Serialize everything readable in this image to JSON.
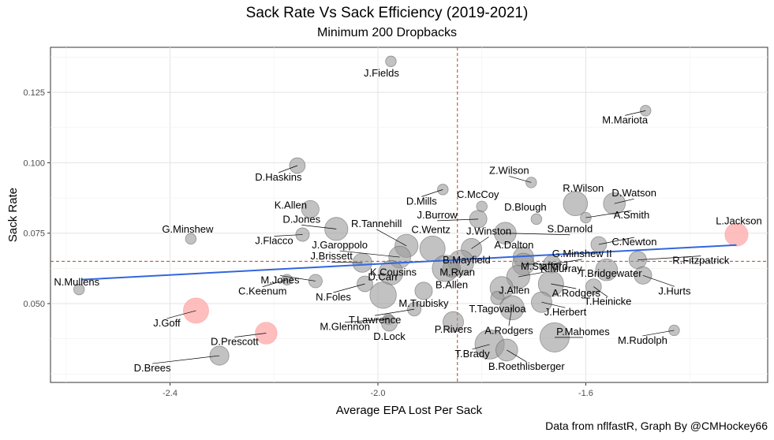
{
  "title": "Sack Rate Vs Sack Efficiency (2019-2021)",
  "subtitle": "Minimum 200 Dropbacks",
  "caption": "Data from nflfastR, Graph By @CMHockey66",
  "chart_data": {
    "type": "scatter",
    "xlabel": "Average EPA Lost Per Sack",
    "ylabel": "Sack Rate",
    "xlim": [
      -2.63,
      -1.25
    ],
    "ylim": [
      0.022,
      0.141
    ],
    "xticks": [
      -2.4,
      -2.0,
      -1.6
    ],
    "xtick_labels": [
      "-2.4",
      "-2.0",
      "-1.6"
    ],
    "yticks": [
      0.05,
      0.075,
      0.1,
      0.125
    ],
    "ytick_labels": [
      "0.050",
      "0.075",
      "0.100",
      "0.125"
    ],
    "grid": true,
    "legend": "none",
    "mean_x": -1.847,
    "mean_y": 0.065,
    "trend_line": {
      "x": [
        -2.57,
        -1.31
      ],
      "y": [
        0.0585,
        0.0708
      ],
      "color": "#3366dd"
    },
    "colors": {
      "point": "#999999",
      "highlight": "#ffb3b3",
      "trend": "#3366dd",
      "ref": "#b2442c"
    },
    "points": [
      {
        "name": "J.Fields",
        "x": -1.975,
        "y": 0.136,
        "size": 1,
        "hl": false
      },
      {
        "name": "M.Mariota",
        "x": -1.485,
        "y": 0.1185,
        "size": 1,
        "hl": false
      },
      {
        "name": "D.Haskins",
        "x": -2.155,
        "y": 0.099,
        "size": 3,
        "hl": false
      },
      {
        "name": "D.Mills",
        "x": -1.875,
        "y": 0.0905,
        "size": 1,
        "hl": false
      },
      {
        "name": "Z.Wilson",
        "x": -1.705,
        "y": 0.093,
        "size": 1,
        "hl": false
      },
      {
        "name": "C.McCoy",
        "x": -1.8,
        "y": 0.0845,
        "size": 1,
        "hl": false
      },
      {
        "name": "R.Wilson",
        "x": -1.62,
        "y": 0.0855,
        "size": 9,
        "hl": false
      },
      {
        "name": "D.Watson",
        "x": -1.545,
        "y": 0.0855,
        "size": 7,
        "hl": false
      },
      {
        "name": "K.Allen",
        "x": -2.13,
        "y": 0.0835,
        "size": 4,
        "hl": false
      },
      {
        "name": "D.Blough",
        "x": -1.695,
        "y": 0.08,
        "size": 1,
        "hl": false
      },
      {
        "name": "A.Smith",
        "x": -1.6,
        "y": 0.0805,
        "size": 1,
        "hl": false
      },
      {
        "name": "J.Burrow",
        "x": -1.807,
        "y": 0.08,
        "size": 4,
        "hl": false
      },
      {
        "name": "D.Jones",
        "x": -2.08,
        "y": 0.0765,
        "size": 8,
        "hl": false
      },
      {
        "name": "G.Minshew",
        "x": -2.36,
        "y": 0.073,
        "size": 1,
        "hl": false
      },
      {
        "name": "J.Winston",
        "x": -1.82,
        "y": 0.0695,
        "size": 6,
        "hl": false
      },
      {
        "name": "S.Darnold",
        "x": -1.755,
        "y": 0.075,
        "size": 7,
        "hl": false
      },
      {
        "name": "R.Tannehill",
        "x": -1.945,
        "y": 0.0705,
        "size": 8,
        "hl": false
      },
      {
        "name": "J.Flacco",
        "x": -2.145,
        "y": 0.0745,
        "size": 2,
        "hl": false
      },
      {
        "name": "L.Jackson",
        "x": -1.31,
        "y": 0.0745,
        "size": 8,
        "hl": true
      },
      {
        "name": "C.Wentz",
        "x": -1.895,
        "y": 0.0695,
        "size": 10,
        "hl": false
      },
      {
        "name": "J.Garoppolo",
        "x": -1.958,
        "y": 0.0665,
        "size": 7,
        "hl": false
      },
      {
        "name": "A.Dalton",
        "x": -1.72,
        "y": 0.0665,
        "size": 6,
        "hl": false
      },
      {
        "name": "C.Newton",
        "x": -1.575,
        "y": 0.071,
        "size": 3,
        "hl": false
      },
      {
        "name": "G.Minshew II",
        "x": -1.665,
        "y": 0.064,
        "size": 4,
        "hl": false
      },
      {
        "name": "J.Brissett",
        "x": -2.03,
        "y": 0.0645,
        "size": 5,
        "hl": false
      },
      {
        "name": "B.Mayfield",
        "x": -1.84,
        "y": 0.0645,
        "size": 10,
        "hl": false
      },
      {
        "name": "M.Ryan",
        "x": -1.87,
        "y": 0.0625,
        "size": 11,
        "hl": false
      },
      {
        "name": "K.Murray",
        "x": -1.72,
        "y": 0.064,
        "size": 7,
        "hl": false
      },
      {
        "name": "T.Bridgewater",
        "x": -1.56,
        "y": 0.062,
        "size": 7,
        "hl": false
      },
      {
        "name": "R.Fitzpatrick",
        "x": -1.5,
        "y": 0.0655,
        "size": 4,
        "hl": false
      },
      {
        "name": "M.Jones",
        "x": -2.12,
        "y": 0.058,
        "size": 2,
        "hl": false
      },
      {
        "name": "K.Cousins",
        "x": -1.975,
        "y": 0.061,
        "size": 9,
        "hl": false
      },
      {
        "name": "B.Allen",
        "x": -1.858,
        "y": 0.0625,
        "size": 4,
        "hl": false
      },
      {
        "name": "M.Stafford",
        "x": -1.73,
        "y": 0.0595,
        "size": 8,
        "hl": false
      },
      {
        "name": "J.Hurts",
        "x": -1.49,
        "y": 0.06,
        "size": 4,
        "hl": false
      },
      {
        "name": "C.Keenum",
        "x": -2.175,
        "y": 0.0585,
        "size": 1,
        "hl": false
      },
      {
        "name": "N.Mullens",
        "x": -2.575,
        "y": 0.055,
        "size": 1,
        "hl": false
      },
      {
        "name": "N.Foles",
        "x": -2.025,
        "y": 0.057,
        "size": 3,
        "hl": false
      },
      {
        "name": "D.Carr",
        "x": -1.99,
        "y": 0.053,
        "size": 11,
        "hl": false
      },
      {
        "name": "A.Rodgers",
        "x": -1.667,
        "y": 0.057,
        "size": 10,
        "hl": false
      },
      {
        "name": "T.Heinicke",
        "x": -1.585,
        "y": 0.056,
        "size": 3,
        "hl": false
      },
      {
        "name": "M.Trubisky",
        "x": -1.912,
        "y": 0.0545,
        "size": 4,
        "hl": false
      },
      {
        "name": "J.Allen",
        "x": -1.762,
        "y": 0.0555,
        "size": 8,
        "hl": false
      },
      {
        "name": "J.Goff",
        "x": -2.35,
        "y": 0.0475,
        "size": 10,
        "hl": true
      },
      {
        "name": "T.Lawrence",
        "x": -1.93,
        "y": 0.048,
        "size": 2,
        "hl": false
      },
      {
        "name": "T.Tagovailoa",
        "x": -1.77,
        "y": 0.052,
        "size": 2,
        "hl": false
      },
      {
        "name": "J.Herbert",
        "x": -1.685,
        "y": 0.0505,
        "size": 6,
        "hl": false
      },
      {
        "name": "A.Rodgers",
        "x": -1.742,
        "y": 0.0485,
        "size": 9,
        "hl": false
      },
      {
        "name": "M.Glennon",
        "x": -1.98,
        "y": 0.0445,
        "size": 1,
        "hl": false
      },
      {
        "name": "P.Rivers",
        "x": -1.855,
        "y": 0.0435,
        "size": 6,
        "hl": false
      },
      {
        "name": "D.Lock",
        "x": -1.978,
        "y": 0.043,
        "size": 3,
        "hl": false
      },
      {
        "name": "D.Prescott",
        "x": -2.215,
        "y": 0.0395,
        "size": 7,
        "hl": true
      },
      {
        "name": "P.Mahomes",
        "x": -1.66,
        "y": 0.038,
        "size": 14,
        "hl": false
      },
      {
        "name": "M.Rudolph",
        "x": -1.43,
        "y": 0.0405,
        "size": 1,
        "hl": false
      },
      {
        "name": "T.Brady",
        "x": -1.785,
        "y": 0.0355,
        "size": 14,
        "hl": false
      },
      {
        "name": "B.Roethlisberger",
        "x": -1.752,
        "y": 0.0335,
        "size": 7,
        "hl": false
      },
      {
        "name": "D.Brees",
        "x": -2.305,
        "y": 0.0315,
        "size": 5,
        "hl": false
      }
    ]
  }
}
